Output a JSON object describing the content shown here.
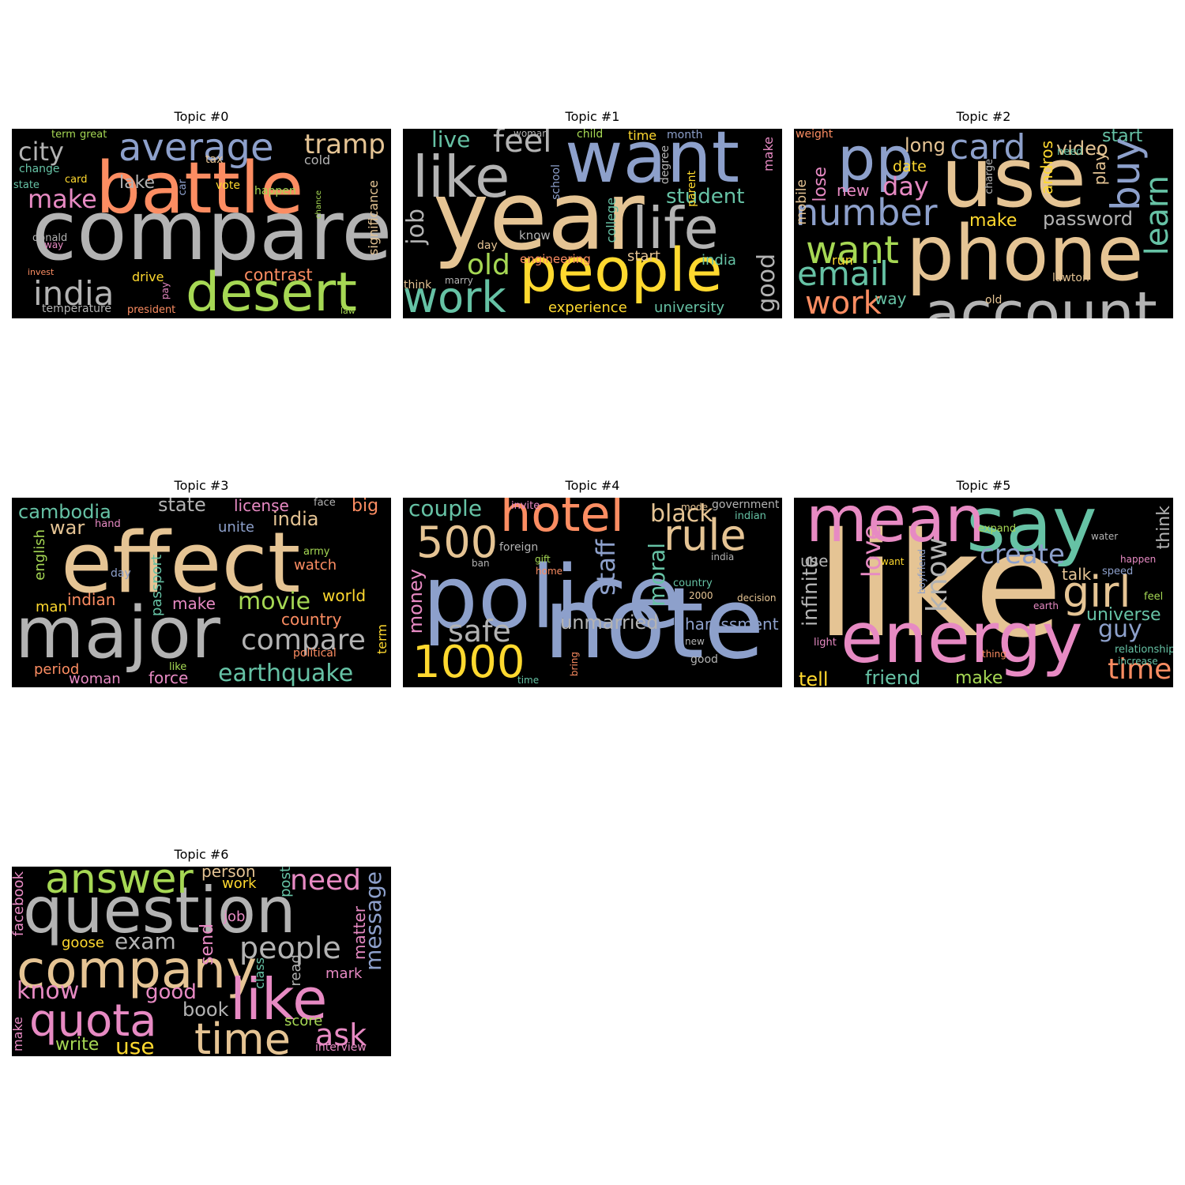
{
  "palette": [
    "#66c2a5",
    "#fc8d62",
    "#8da0cb",
    "#e78ac3",
    "#a6d854",
    "#ffd92f",
    "#e5c494",
    "#b3b3b3"
  ],
  "panels": [
    {
      "title": "Topic #0",
      "words": [
        {
          "text": "compare",
          "c": 7
        },
        {
          "text": "battle",
          "c": 1
        },
        {
          "text": "desert",
          "c": 4
        },
        {
          "text": "average",
          "c": 2
        },
        {
          "text": "tramp",
          "c": 6
        },
        {
          "text": "india",
          "c": 7
        },
        {
          "text": "city",
          "c": 7
        },
        {
          "text": "make",
          "c": 3
        },
        {
          "text": "lake",
          "c": 7
        },
        {
          "text": "contrast",
          "c": 1
        },
        {
          "text": "drive",
          "c": 5
        },
        {
          "text": "cold",
          "c": 7
        },
        {
          "text": "tax",
          "c": 6
        },
        {
          "text": "vote",
          "c": 5
        },
        {
          "text": "happen",
          "c": 4
        },
        {
          "text": "card",
          "c": 5
        },
        {
          "text": "change",
          "c": 0
        },
        {
          "text": "state",
          "c": 0
        },
        {
          "text": "term",
          "c": 4
        },
        {
          "text": "great",
          "c": 4
        },
        {
          "text": "donald",
          "c": 7
        },
        {
          "text": "way",
          "c": 3
        },
        {
          "text": "invest",
          "c": 1
        },
        {
          "text": "temperature",
          "c": 7
        },
        {
          "text": "president",
          "c": 1
        },
        {
          "text": "law",
          "c": 4
        },
        {
          "text": "car",
          "c": 2
        },
        {
          "text": "pay",
          "c": 3
        },
        {
          "text": "chance",
          "c": 4
        },
        {
          "text": "significance",
          "c": 6
        }
      ]
    },
    {
      "title": "Topic #1",
      "words": [
        {
          "text": "year",
          "c": 6
        },
        {
          "text": "want",
          "c": 2
        },
        {
          "text": "people",
          "c": 5
        },
        {
          "text": "like",
          "c": 7
        },
        {
          "text": "life",
          "c": 7
        },
        {
          "text": "work",
          "c": 0
        },
        {
          "text": "feel",
          "c": 7
        },
        {
          "text": "live",
          "c": 0
        },
        {
          "text": "old",
          "c": 4
        },
        {
          "text": "student",
          "c": 0
        },
        {
          "text": "job",
          "c": 7
        },
        {
          "text": "good",
          "c": 7
        },
        {
          "text": "know",
          "c": 7
        },
        {
          "text": "day",
          "c": 6
        },
        {
          "text": "start",
          "c": 6
        },
        {
          "text": "india",
          "c": 0
        },
        {
          "text": "engineering",
          "c": 1
        },
        {
          "text": "experience",
          "c": 5
        },
        {
          "text": "university",
          "c": 0
        },
        {
          "text": "time",
          "c": 5
        },
        {
          "text": "month",
          "c": 2
        },
        {
          "text": "child",
          "c": 4
        },
        {
          "text": "woman",
          "c": 7
        },
        {
          "text": "marry",
          "c": 7
        },
        {
          "text": "think",
          "c": 6
        },
        {
          "text": "school",
          "c": 2
        },
        {
          "text": "college",
          "c": 0
        },
        {
          "text": "degree",
          "c": 7
        },
        {
          "text": "parent",
          "c": 5
        },
        {
          "text": "make",
          "c": 3
        }
      ]
    },
    {
      "title": "Topic #2",
      "words": [
        {
          "text": "phone",
          "c": 6
        },
        {
          "text": "account",
          "c": 7
        },
        {
          "text": "use",
          "c": 6
        },
        {
          "text": "pp",
          "c": 2
        },
        {
          "text": "card",
          "c": 2
        },
        {
          "text": "number",
          "c": 2
        },
        {
          "text": "want",
          "c": 4
        },
        {
          "text": "email",
          "c": 0
        },
        {
          "text": "work",
          "c": 1
        },
        {
          "text": "day",
          "c": 3
        },
        {
          "text": "long",
          "c": 6
        },
        {
          "text": "video",
          "c": 6
        },
        {
          "text": "start",
          "c": 0
        },
        {
          "text": "date",
          "c": 5
        },
        {
          "text": "new",
          "c": 3
        },
        {
          "text": "lose",
          "c": 3
        },
        {
          "text": "buy",
          "c": 2
        },
        {
          "text": "learn",
          "c": 0
        },
        {
          "text": "password",
          "c": 7
        },
        {
          "text": "make",
          "c": 5
        },
        {
          "text": "way",
          "c": 0
        },
        {
          "text": "run",
          "c": 5
        },
        {
          "text": "old",
          "c": 6
        },
        {
          "text": "lawton",
          "c": 6
        },
        {
          "text": "weight",
          "c": 1
        },
        {
          "text": "mobile",
          "c": 6
        },
        {
          "text": "andros",
          "c": 5
        },
        {
          "text": "charge",
          "c": 7
        },
        {
          "text": "need",
          "c": 0
        },
        {
          "text": "play",
          "c": 6
        }
      ]
    },
    {
      "title": "Topic #3",
      "words": [
        {
          "text": "effect",
          "c": 6
        },
        {
          "text": "major",
          "c": 7
        },
        {
          "text": "compare",
          "c": 7
        },
        {
          "text": "earthquake",
          "c": 0
        },
        {
          "text": "movie",
          "c": 4
        },
        {
          "text": "india",
          "c": 6
        },
        {
          "text": "cambodia",
          "c": 0
        },
        {
          "text": "war",
          "c": 6
        },
        {
          "text": "state",
          "c": 7
        },
        {
          "text": "license",
          "c": 3
        },
        {
          "text": "big",
          "c": 1
        },
        {
          "text": "indian",
          "c": 1
        },
        {
          "text": "world",
          "c": 5
        },
        {
          "text": "country",
          "c": 1
        },
        {
          "text": "make",
          "c": 3
        },
        {
          "text": "watch",
          "c": 1
        },
        {
          "text": "unite",
          "c": 2
        },
        {
          "text": "force",
          "c": 3
        },
        {
          "text": "period",
          "c": 1
        },
        {
          "text": "woman",
          "c": 3
        },
        {
          "text": "man",
          "c": 5
        },
        {
          "text": "english",
          "c": 4
        },
        {
          "text": "passport",
          "c": 0
        },
        {
          "text": "day",
          "c": 2
        },
        {
          "text": "hand",
          "c": 3
        },
        {
          "text": "face",
          "c": 7
        },
        {
          "text": "army",
          "c": 4
        },
        {
          "text": "like",
          "c": 4
        },
        {
          "text": "political",
          "c": 1
        },
        {
          "text": "term",
          "c": 5
        }
      ]
    },
    {
      "title": "Topic #4",
      "words": [
        {
          "text": "police",
          "c": 2
        },
        {
          "text": "note",
          "c": 2
        },
        {
          "text": "hotel",
          "c": 1
        },
        {
          "text": "rule",
          "c": 6
        },
        {
          "text": "500",
          "c": 6
        },
        {
          "text": "1000",
          "c": 5
        },
        {
          "text": "safe",
          "c": 7
        },
        {
          "text": "couple",
          "c": 0
        },
        {
          "text": "black",
          "c": 6
        },
        {
          "text": "staff",
          "c": 2
        },
        {
          "text": "moral",
          "c": 0
        },
        {
          "text": "unmarried",
          "c": 7
        },
        {
          "text": "harassment",
          "c": 2
        },
        {
          "text": "money",
          "c": 3
        },
        {
          "text": "government",
          "c": 7
        },
        {
          "text": "indian",
          "c": 0
        },
        {
          "text": "mode",
          "c": 6
        },
        {
          "text": "invite",
          "c": 3
        },
        {
          "text": "foreign",
          "c": 7
        },
        {
          "text": "ban",
          "c": 7
        },
        {
          "text": "gift",
          "c": 4
        },
        {
          "text": "home",
          "c": 1
        },
        {
          "text": "india",
          "c": 7
        },
        {
          "text": "country",
          "c": 0
        },
        {
          "text": "2000",
          "c": 6
        },
        {
          "text": "decision",
          "c": 6
        },
        {
          "text": "new",
          "c": 7
        },
        {
          "text": "good",
          "c": 7
        },
        {
          "text": "time",
          "c": 0
        },
        {
          "text": "bring",
          "c": 1
        }
      ]
    },
    {
      "title": "Topic #5",
      "words": [
        {
          "text": "like",
          "c": 6
        },
        {
          "text": "say",
          "c": 0
        },
        {
          "text": "mean",
          "c": 3
        },
        {
          "text": "energy",
          "c": 3
        },
        {
          "text": "girl",
          "c": 6
        },
        {
          "text": "create",
          "c": 2
        },
        {
          "text": "love",
          "c": 3
        },
        {
          "text": "know",
          "c": 7
        },
        {
          "text": "time",
          "c": 1
        },
        {
          "text": "guy",
          "c": 2
        },
        {
          "text": "universe",
          "c": 0
        },
        {
          "text": "talk",
          "c": 6
        },
        {
          "text": "think",
          "c": 7
        },
        {
          "text": "infinite",
          "c": 7
        },
        {
          "text": "use",
          "c": 7
        },
        {
          "text": "friend",
          "c": 0
        },
        {
          "text": "make",
          "c": 4
        },
        {
          "text": "tell",
          "c": 5
        },
        {
          "text": "expand",
          "c": 4
        },
        {
          "text": "water",
          "c": 7
        },
        {
          "text": "want",
          "c": 5
        },
        {
          "text": "boyfriend",
          "c": 2
        },
        {
          "text": "happen",
          "c": 3
        },
        {
          "text": "speed",
          "c": 2
        },
        {
          "text": "feel",
          "c": 4
        },
        {
          "text": "earth",
          "c": 3
        },
        {
          "text": "light",
          "c": 3
        },
        {
          "text": "thing",
          "c": 1
        },
        {
          "text": "relationship",
          "c": 0
        },
        {
          "text": "increase",
          "c": 0
        }
      ]
    },
    {
      "title": "Topic #6",
      "words": [
        {
          "text": "question",
          "c": 7
        },
        {
          "text": "company",
          "c": 6
        },
        {
          "text": "like",
          "c": 3
        },
        {
          "text": "quota",
          "c": 3
        },
        {
          "text": "answer",
          "c": 4
        },
        {
          "text": "time",
          "c": 6
        },
        {
          "text": "people",
          "c": 7
        },
        {
          "text": "need",
          "c": 3
        },
        {
          "text": "exam",
          "c": 7
        },
        {
          "text": "know",
          "c": 3
        },
        {
          "text": "good",
          "c": 3
        },
        {
          "text": "ask",
          "c": 3
        },
        {
          "text": "book",
          "c": 7
        },
        {
          "text": "use",
          "c": 5
        },
        {
          "text": "write",
          "c": 4
        },
        {
          "text": "person",
          "c": 6
        },
        {
          "text": "work",
          "c": 5
        },
        {
          "text": "send",
          "c": 3
        },
        {
          "text": "job",
          "c": 3
        },
        {
          "text": "post",
          "c": 0
        },
        {
          "text": "message",
          "c": 2
        },
        {
          "text": "matter",
          "c": 3
        },
        {
          "text": "mark",
          "c": 3
        },
        {
          "text": "read",
          "c": 7
        },
        {
          "text": "class",
          "c": 0
        },
        {
          "text": "score",
          "c": 4
        },
        {
          "text": "goose",
          "c": 5
        },
        {
          "text": "facebook",
          "c": 3
        },
        {
          "text": "make",
          "c": 3
        },
        {
          "text": "interview",
          "c": 3
        }
      ]
    }
  ]
}
